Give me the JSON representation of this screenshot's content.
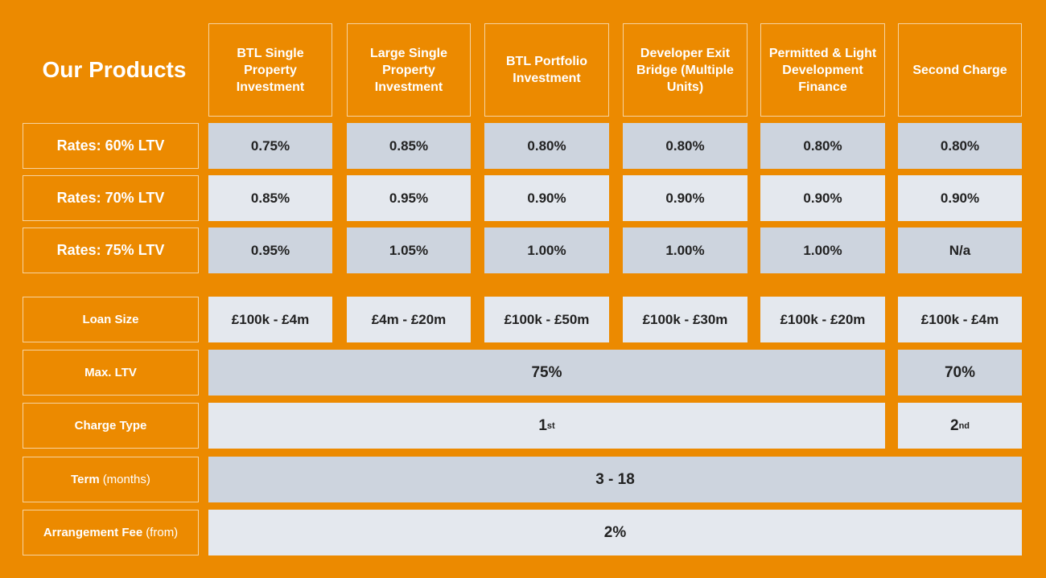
{
  "title": "Our Products",
  "products": [
    "BTL Single Property Investment",
    "Large Single Property Investment",
    "BTL Portfolio Investment",
    "Developer Exit Bridge (Multiple Units)",
    "Permitted & Light Development Finance",
    "Second Charge"
  ],
  "rates": [
    {
      "label": "Rates: 60% LTV",
      "values": [
        "0.75%",
        "0.85%",
        "0.80%",
        "0.80%",
        "0.80%",
        "0.80%"
      ]
    },
    {
      "label": "Rates: 70% LTV",
      "values": [
        "0.85%",
        "0.95%",
        "0.90%",
        "0.90%",
        "0.90%",
        "0.90%"
      ]
    },
    {
      "label": "Rates: 75% LTV",
      "values": [
        "0.95%",
        "1.05%",
        "1.00%",
        "1.00%",
        "1.00%",
        "N/a"
      ]
    }
  ],
  "loan_size": {
    "label": "Loan Size",
    "values": [
      "£100k - £4m",
      "£4m - £20m",
      "£100k - £50m",
      "£100k - £30m",
      "£100k - £20m",
      "£100k - £4m"
    ]
  },
  "max_ltv": {
    "label": "Max. LTV",
    "main": "75%",
    "second": "70%"
  },
  "charge_type": {
    "label": "Charge Type",
    "main": "1",
    "main_sup": "st",
    "second": "2",
    "second_sup": "nd"
  },
  "term": {
    "label": "Term",
    "sub": "(months)",
    "value": "3 - 18"
  },
  "fee": {
    "label": "Arrangement Fee",
    "sub": "(from)",
    "value": "2%"
  }
}
